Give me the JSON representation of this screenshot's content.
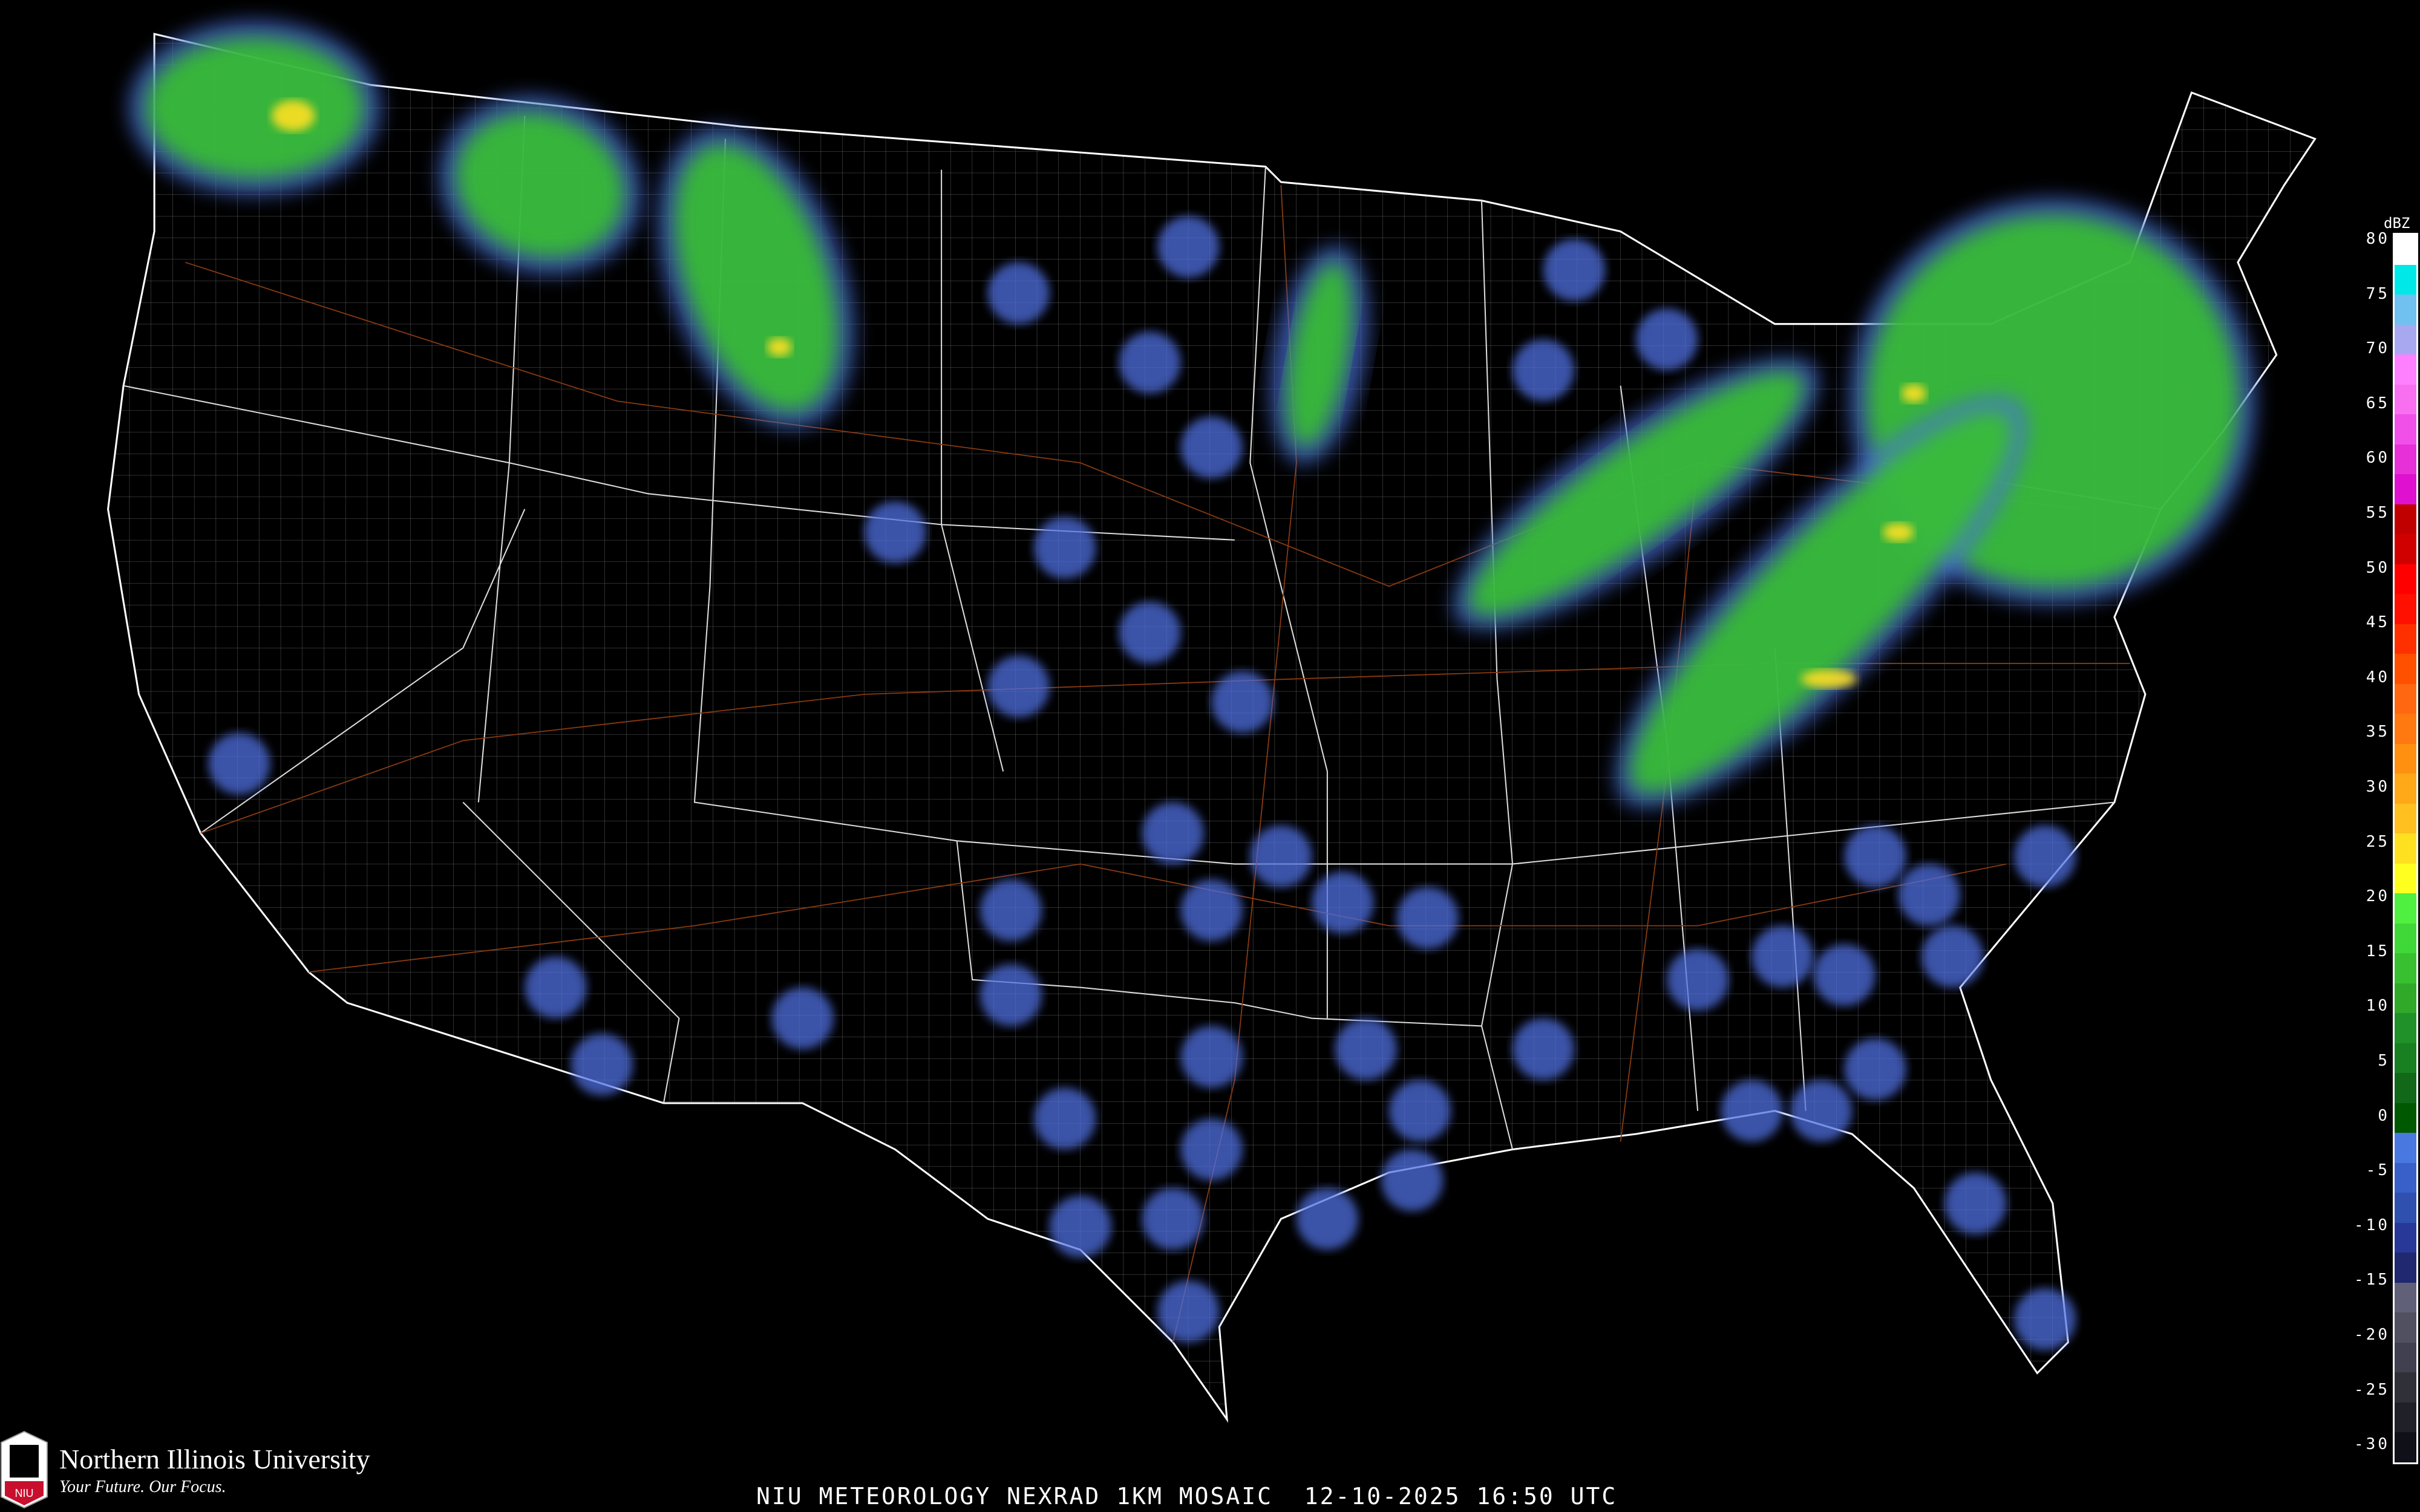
{
  "title": "NIU METEOROLOGY NEXRAD 1KM MOSAIC  12-10-2025 16:50 UTC",
  "logo": {
    "name": "Northern Illinois University",
    "tagline": "Your Future. Our Focus.",
    "badge": "NIU"
  },
  "legend": {
    "unit": "dBZ",
    "ticks": [
      "80",
      "75",
      "70",
      "65",
      "60",
      "55",
      "50",
      "45",
      "40",
      "35",
      "30",
      "25",
      "20",
      "15",
      "10",
      "5",
      "0",
      "-5",
      "-10",
      "-15",
      "-20",
      "-25",
      "-30"
    ],
    "colors": [
      "#ffffff",
      "#00e8e8",
      "#70c0f0",
      "#a8a8f0",
      "#ff80ff",
      "#f870f0",
      "#f050e8",
      "#e830d8",
      "#e010d0",
      "#c00000",
      "#d00000",
      "#ff0000",
      "#ff1000",
      "#ff3000",
      "#ff5000",
      "#ff6810",
      "#ff7810",
      "#ff9010",
      "#ffa818",
      "#ffc020",
      "#ffe020",
      "#ffff20",
      "#50f040",
      "#40d838",
      "#38c030",
      "#30a828",
      "#209028",
      "#188020",
      "#106818",
      "#005800",
      "#4878e0",
      "#3860c8",
      "#3050b0",
      "#283898",
      "#202870",
      "#606078",
      "#505060",
      "#404050",
      "#303038",
      "#202028",
      "#101018"
    ]
  },
  "colors": {
    "state_border": "#ffffff",
    "county_border": "#8a8a8a",
    "highway": "#8a3a10"
  }
}
